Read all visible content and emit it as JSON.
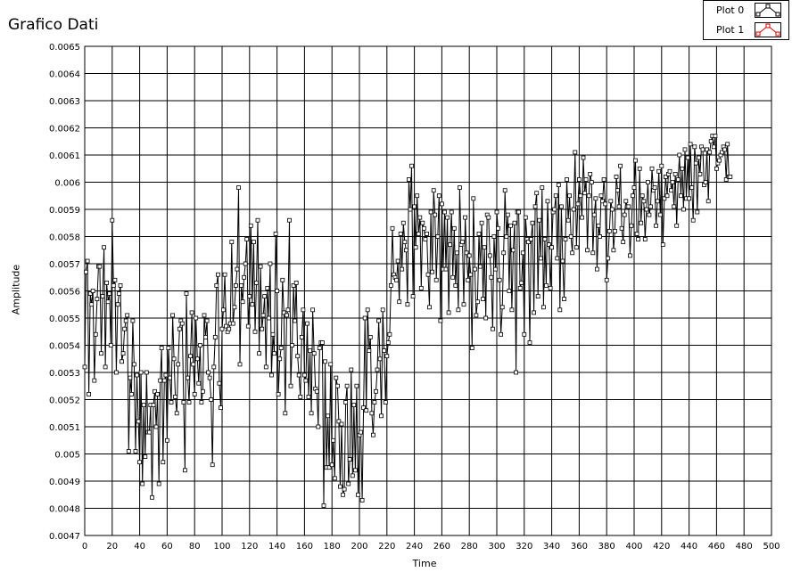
{
  "chart_data": {
    "type": "line",
    "title": "Grafico Dati",
    "xlabel": "Time",
    "ylabel": "Amplitude",
    "xlim": [
      0,
      500
    ],
    "ylim": [
      0.0047,
      0.0065
    ],
    "x_ticks": [
      0,
      20,
      40,
      60,
      80,
      100,
      120,
      140,
      160,
      180,
      200,
      220,
      240,
      260,
      280,
      300,
      320,
      340,
      360,
      380,
      400,
      420,
      440,
      460,
      480,
      500
    ],
    "y_ticks": [
      "0.0047",
      "0.0048",
      "0.0049",
      "0.005",
      "0.0051",
      "0.0052",
      "0.0053",
      "0.0054",
      "0.0055",
      "0.0056",
      "0.0057",
      "0.0058",
      "0.0059",
      "0.006",
      "0.0061",
      "0.0062",
      "0.0063",
      "0.0064",
      "0.0065"
    ],
    "grid": true,
    "legend_position": "top-right",
    "series": [
      {
        "name": "Plot 0",
        "color": "#000000",
        "marker": "square",
        "x_start": 0,
        "x_step": 1,
        "values": [
          0.00532,
          0.00567,
          0.00571,
          0.00522,
          0.00559,
          0.00555,
          0.0056,
          0.00527,
          0.00544,
          0.00557,
          0.00569,
          0.00569,
          0.00537,
          0.00558,
          0.00576,
          0.00532,
          0.00563,
          0.00556,
          0.00559,
          0.0054,
          0.00586,
          0.00562,
          0.00564,
          0.0053,
          0.00555,
          0.00559,
          0.00562,
          0.00534,
          0.00537,
          0.00546,
          0.00549,
          0.00551,
          0.00501,
          0.00528,
          0.00522,
          0.00549,
          0.00533,
          0.00501,
          0.00529,
          0.00512,
          0.00497,
          0.0053,
          0.00489,
          0.00518,
          0.00499,
          0.0053,
          0.00508,
          0.00508,
          0.00518,
          0.00484,
          0.00518,
          0.00523,
          0.0051,
          0.00522,
          0.00489,
          0.00527,
          0.00539,
          0.00497,
          0.00527,
          0.00529,
          0.00505,
          0.00539,
          0.00528,
          0.00519,
          0.00551,
          0.00535,
          0.00521,
          0.00515,
          0.00533,
          0.00546,
          0.00549,
          0.00548,
          0.00519,
          0.00494,
          0.00559,
          0.00528,
          0.00519,
          0.00536,
          0.00552,
          0.00533,
          0.00522,
          0.0055,
          0.00535,
          0.00526,
          0.0054,
          0.00519,
          0.00523,
          0.00551,
          0.00543,
          0.00549,
          0.0053,
          0.00528,
          0.0052,
          0.00496,
          0.00532,
          0.00543,
          0.00562,
          0.00566,
          0.00526,
          0.00517,
          0.00546,
          0.00553,
          0.00566,
          0.00547,
          0.00545,
          0.00546,
          0.00548,
          0.00578,
          0.00548,
          0.00554,
          0.00562,
          0.00568,
          0.00598,
          0.00533,
          0.00562,
          0.00556,
          0.00565,
          0.0057,
          0.00579,
          0.00547,
          0.00558,
          0.00584,
          0.00555,
          0.00578,
          0.00545,
          0.00563,
          0.00586,
          0.00537,
          0.00569,
          0.00546,
          0.00551,
          0.00558,
          0.00532,
          0.00561,
          0.0055,
          0.0057,
          0.00529,
          0.00544,
          0.00537,
          0.00581,
          0.0056,
          0.00522,
          0.00535,
          0.00539,
          0.00564,
          0.00552,
          0.00515,
          0.00551,
          0.00553,
          0.00586,
          0.00525,
          0.0054,
          0.00562,
          0.00549,
          0.00563,
          0.00536,
          0.00529,
          0.00521,
          0.00543,
          0.00553,
          0.00529,
          0.00527,
          0.00548,
          0.00521,
          0.00538,
          0.00515,
          0.00553,
          0.00537,
          0.00524,
          0.00523,
          0.0051,
          0.00539,
          0.00541,
          0.00541,
          0.00481,
          0.00534,
          0.00495,
          0.00514,
          0.00495,
          0.00533,
          0.00496,
          0.00505,
          0.00491,
          0.00528,
          0.00525,
          0.00512,
          0.00488,
          0.00511,
          0.00485,
          0.00487,
          0.00519,
          0.00525,
          0.00489,
          0.00498,
          0.00531,
          0.00492,
          0.00518,
          0.00494,
          0.00525,
          0.00485,
          0.00507,
          0.00508,
          0.00483,
          0.00517,
          0.0055,
          0.00516,
          0.00553,
          0.00538,
          0.00543,
          0.00515,
          0.00507,
          0.00519,
          0.00523,
          0.00531,
          0.00549,
          0.00535,
          0.00514,
          0.00553,
          0.00538,
          0.00519,
          0.00536,
          0.00541,
          0.00544,
          0.00562,
          0.00583,
          0.00566,
          0.00565,
          0.00564,
          0.00571,
          0.00556,
          0.00581,
          0.00568,
          0.00585,
          0.00578,
          0.00575,
          0.00555,
          0.00601,
          0.0059,
          0.00606,
          0.00558,
          0.00591,
          0.00576,
          0.00595,
          0.00581,
          0.00587,
          0.00561,
          0.00585,
          0.00583,
          0.00579,
          0.00581,
          0.00566,
          0.00554,
          0.00589,
          0.00567,
          0.00597,
          0.00588,
          0.00564,
          0.0058,
          0.00595,
          0.00549,
          0.00592,
          0.00568,
          0.00589,
          0.00568,
          0.00587,
          0.00552,
          0.00577,
          0.00589,
          0.00565,
          0.00583,
          0.00562,
          0.00574,
          0.00553,
          0.00598,
          0.00577,
          0.00578,
          0.00555,
          0.00587,
          0.00574,
          0.00564,
          0.00573,
          0.00566,
          0.00539,
          0.00594,
          0.00568,
          0.00551,
          0.00556,
          0.00581,
          0.00569,
          0.00585,
          0.00557,
          0.00576,
          0.0055,
          0.00588,
          0.00587,
          0.00573,
          0.00565,
          0.00546,
          0.0058,
          0.00568,
          0.00589,
          0.00583,
          0.00564,
          0.00544,
          0.00554,
          0.00574,
          0.00597,
          0.0058,
          0.00588,
          0.0056,
          0.00584,
          0.00553,
          0.00575,
          0.00585,
          0.0053,
          0.00589,
          0.00589,
          0.00561,
          0.00563,
          0.00574,
          0.00544,
          0.00587,
          0.00579,
          0.00578,
          0.00541,
          0.00579,
          0.00585,
          0.00552,
          0.00591,
          0.00596,
          0.00558,
          0.00586,
          0.00572,
          0.00598,
          0.00554,
          0.00579,
          0.00562,
          0.00593,
          0.00577,
          0.00561,
          0.00576,
          0.00589,
          0.0059,
          0.00595,
          0.00572,
          0.00599,
          0.00553,
          0.00591,
          0.00571,
          0.00557,
          0.00579,
          0.00601,
          0.00586,
          0.00595,
          0.0058,
          0.00574,
          0.0059,
          0.00611,
          0.00576,
          0.00592,
          0.00601,
          0.00595,
          0.00587,
          0.00609,
          0.00596,
          0.00601,
          0.00575,
          0.00595,
          0.00603,
          0.006,
          0.00574,
          0.00588,
          0.00594,
          0.00568,
          0.00584,
          0.0058,
          0.00595,
          0.00593,
          0.00601,
          0.00592,
          0.00564,
          0.00572,
          0.00582,
          0.00593,
          0.0059,
          0.00575,
          0.00582,
          0.00602,
          0.00597,
          0.00591,
          0.00606,
          0.00583,
          0.00578,
          0.00588,
          0.00593,
          0.00591,
          0.00591,
          0.00573,
          0.00584,
          0.00595,
          0.00598,
          0.00608,
          0.00581,
          0.00579,
          0.00605,
          0.00585,
          0.00595,
          0.00593,
          0.00579,
          0.0059,
          0.006,
          0.00588,
          0.00591,
          0.00605,
          0.00597,
          0.00598,
          0.00584,
          0.00593,
          0.00604,
          0.00588,
          0.00606,
          0.00577,
          0.00594,
          0.00602,
          0.00595,
          0.00603,
          0.00604,
          0.00597,
          0.006,
          0.00591,
          0.00603,
          0.00584,
          0.00601,
          0.0061,
          0.00595,
          0.00605,
          0.0059,
          0.00612,
          0.00594,
          0.00609,
          0.00594,
          0.00614,
          0.00598,
          0.00586,
          0.00613,
          0.00607,
          0.00589,
          0.00609,
          0.00603,
          0.00613,
          0.00612,
          0.00599,
          0.006,
          0.00612,
          0.00593,
          0.00611,
          0.00615,
          0.00617,
          0.00613,
          0.00617,
          0.00605,
          0.00607,
          0.00608,
          0.0061,
          0.00611,
          0.00613,
          0.00612,
          0.00601,
          0.00614,
          0.00602,
          0.00602
        ]
      }
    ]
  },
  "legend": {
    "items": [
      {
        "label": "Plot 0",
        "color": "#000000",
        "marker": "square"
      },
      {
        "label": "Plot 1",
        "color": "#d40000",
        "marker": "square"
      }
    ]
  }
}
